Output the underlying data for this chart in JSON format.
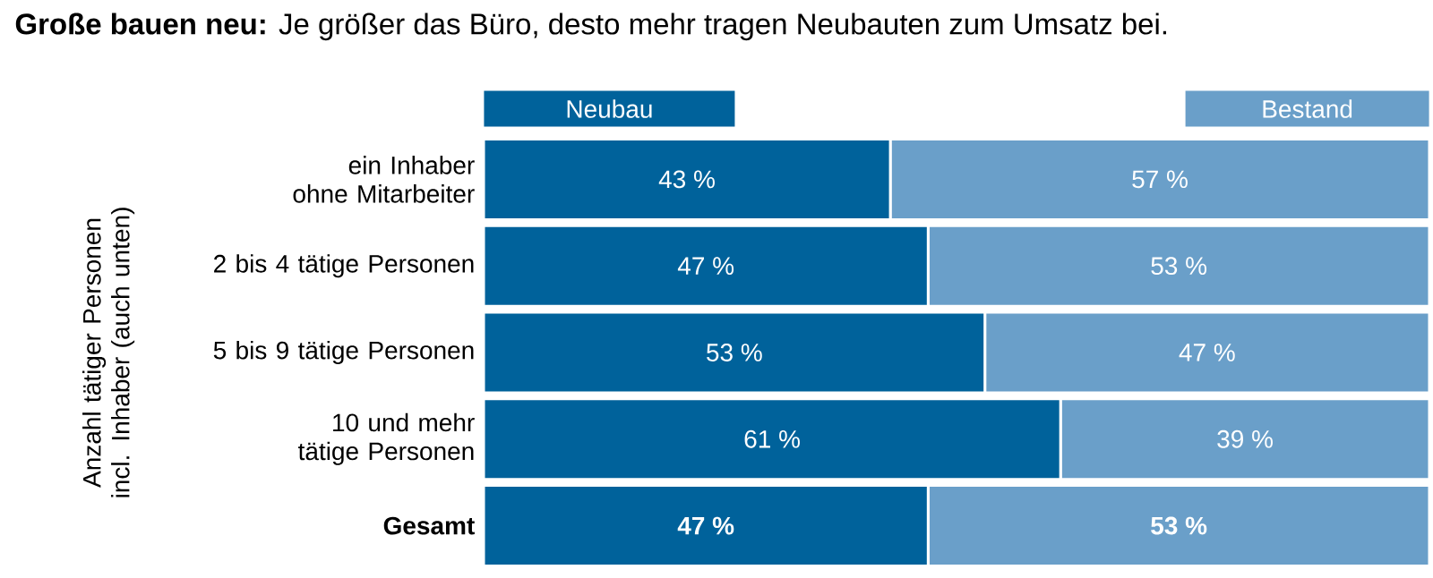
{
  "chart_data": {
    "type": "bar",
    "orientation": "horizontal",
    "stacked": true,
    "title": "**Große bauen neu:** Je größer das Büro, desto mehr tragen Neubauten zum Umsatz bei.",
    "ylabel": "Anzahl tätiger Personen incl. Inhaber (auch unten)",
    "categories": [
      "ein Inhaber ohne Mitarbeiter",
      "2 bis 4 tätige Personen",
      "5 bis 9 tätige Personen",
      "10 und mehr tätige Personen",
      "**Gesamt**"
    ],
    "series": [
      {
        "name": "Neubau",
        "color": "#00629b",
        "values": [
          43,
          47,
          53,
          61,
          47
        ],
        "value_labels": [
          "43 %",
          "47 %",
          "53 %",
          "61 %",
          "**47 %**"
        ]
      },
      {
        "name": "Bestand",
        "color": "#6a9fc9",
        "values": [
          57,
          53,
          47,
          39,
          53
        ],
        "value_labels": [
          "57 %",
          "53 %",
          "47 %",
          "39 %",
          "**53 %**"
        ]
      }
    ],
    "xlim": [
      0,
      100
    ],
    "tick_labels": "y",
    "legend": "top"
  }
}
